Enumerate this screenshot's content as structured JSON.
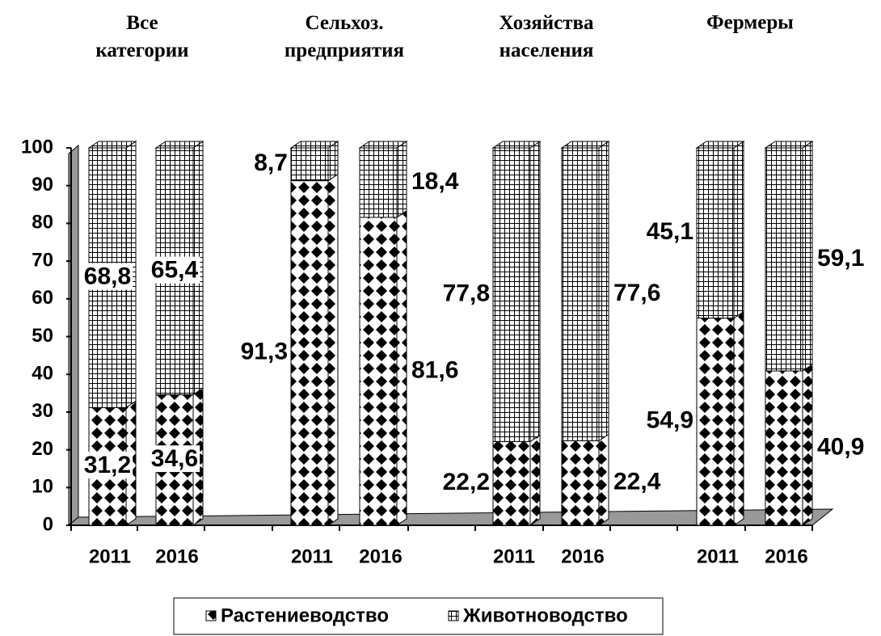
{
  "chart_data": {
    "type": "stacked-bar-3d",
    "groups": [
      "Все категории",
      "Сельхоз. предприятия",
      "Хозяйства населения",
      "Фермеры"
    ],
    "categories": [
      "2011",
      "2016",
      "2011",
      "2016",
      "2011",
      "2016",
      "2011",
      "2016"
    ],
    "series": [
      {
        "name": "Растениеводство",
        "color": "#000000",
        "pattern": "diamond",
        "values": [
          31.2,
          34.6,
          91.3,
          81.6,
          22.2,
          22.4,
          54.9,
          40.9
        ],
        "value_labels": [
          "31,2",
          "34,6",
          "91,3",
          "81,6",
          "22,2",
          "22,4",
          "54,9",
          "40,9"
        ]
      },
      {
        "name": "Животноводство",
        "color": "#000000",
        "pattern": "grid",
        "values": [
          68.8,
          65.4,
          8.7,
          18.4,
          77.8,
          77.6,
          45.1,
          59.1
        ],
        "value_labels": [
          "68,8",
          "65,4",
          "8,7",
          "18,4",
          "77,8",
          "77,6",
          "45,1",
          "59,1"
        ]
      }
    ],
    "ylim": [
      0,
      100
    ],
    "yticks": [
      0,
      10,
      20,
      30,
      40,
      50,
      60,
      70,
      80,
      90,
      100
    ],
    "legend": "bottom"
  }
}
